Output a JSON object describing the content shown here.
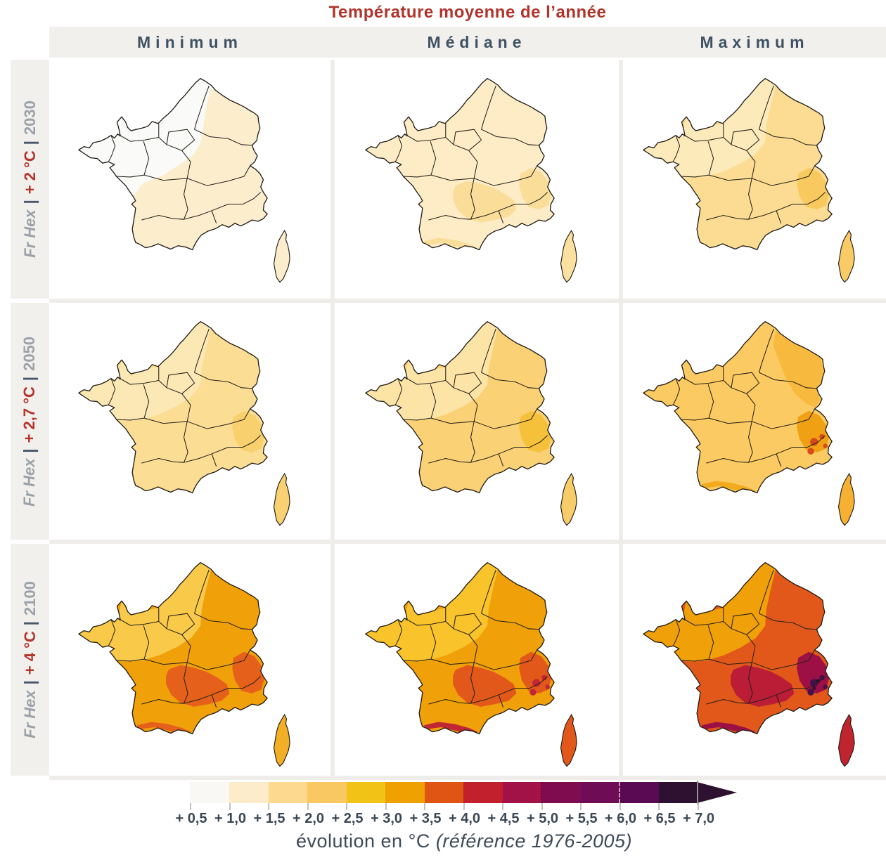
{
  "title": "Température moyenne de l’année",
  "columns": [
    {
      "label": "Minimum"
    },
    {
      "label": "Médiane"
    },
    {
      "label": "Maximum"
    }
  ],
  "rows": [
    {
      "dataset": "Fr Hex",
      "sep": "|",
      "scenario": "+ 2 °C",
      "year": "2030"
    },
    {
      "dataset": "Fr Hex",
      "sep": "|",
      "scenario": "+ 2,7 °C",
      "year": "2050"
    },
    {
      "dataset": "Fr Hex",
      "sep": "|",
      "scenario": "+ 4 °C",
      "year": "2100"
    }
  ],
  "cells": [
    {
      "row": "2030",
      "column": "Minimum",
      "colors": {
        "base": "#fafaf8",
        "corsica": "#fcedcd",
        "p-se": "#fcedcd"
      }
    },
    {
      "row": "2030",
      "column": "Médiane",
      "colors": {
        "base": "#fdecc6",
        "corsica": "#fbe0a0",
        "p-massif": "#fbdd9a",
        "p-alps": "#fbdd9a",
        "p-pyr": "#fbdd9a"
      }
    },
    {
      "row": "2030",
      "column": "Maximum",
      "colors": {
        "base": "#fbdc92",
        "corsica": "#f8cb67",
        "p-nw": "#fdeaba",
        "p-alps": "#f8c95e"
      }
    },
    {
      "row": "2050",
      "column": "Minimum",
      "colors": {
        "base": "#fbdd94",
        "corsica": "#f9d173",
        "p-nw": "#fce8b4",
        "p-alps": "#f9d06e"
      }
    },
    {
      "row": "2050",
      "column": "Médiane",
      "colors": {
        "base": "#fbd176",
        "corsica": "#f9cc6a",
        "p-nw": "#fce3a6",
        "p-alps": "#f6c13a"
      }
    },
    {
      "row": "2050",
      "column": "Maximum",
      "colors": {
        "base": "#fbca62",
        "corsica": "#f6b133",
        "p-east": "#f8ba3e",
        "p-alps": "#f0a113",
        "p-spots": "#d84a1a",
        "p-pyr": "#f3ab1e"
      }
    },
    {
      "row": "2100",
      "column": "Minimum",
      "colors": {
        "base": "#f0a008",
        "corsica": "#f2ae25",
        "p-nw": "#f9c94a",
        "p-massif": "#e5611b",
        "p-alps": "#e5611b",
        "p-pyr": "#e5611b"
      }
    },
    {
      "row": "2100",
      "column": "Médiane",
      "colors": {
        "base": "#f0a008",
        "corsica": "#e2581a",
        "p-nw": "#f9c32b",
        "p-massif": "#e2581a",
        "p-alps": "#e2581a",
        "p-spots": "#c12634",
        "p-pyr": "#c12634"
      }
    },
    {
      "row": "2100",
      "column": "Maximum",
      "colors": {
        "base": "#e2581a",
        "corsica": "#c0242f",
        "p-nw": "#f0a008",
        "p-massif": "#bb1c36",
        "p-alps": "#9c1045",
        "p-spots": "#45104a",
        "p-spot2": "#2c1030",
        "p-pyr": "#9c1045"
      }
    }
  ],
  "panels_estimated_anomaly_C": [
    {
      "row": "Fr Hex | + 2 °C | 2030",
      "column": "Minimum",
      "approx_range": "+0,5 à +1,5"
    },
    {
      "row": "Fr Hex | + 2 °C | 2030",
      "column": "Médiane",
      "approx_range": "+1,0 à +2,0"
    },
    {
      "row": "Fr Hex | + 2 °C | 2030",
      "column": "Maximum",
      "approx_range": "+1,0 à +2,5"
    },
    {
      "row": "Fr Hex | + 2,7 °C | 2050",
      "column": "Minimum",
      "approx_range": "+1,0 à +2,0"
    },
    {
      "row": "Fr Hex | + 2,7 °C | 2050",
      "column": "Médiane",
      "approx_range": "+1,5 à +2,5"
    },
    {
      "row": "Fr Hex | + 2,7 °C | 2050",
      "column": "Maximum",
      "approx_range": "+1,5 à +3,5"
    },
    {
      "row": "Fr Hex | + 4 °C | 2100",
      "column": "Minimum",
      "approx_range": "+2,0 à +4,0"
    },
    {
      "row": "Fr Hex | + 4 °C | 2100",
      "column": "Médiane",
      "approx_range": "+2,0 à +4,5"
    },
    {
      "row": "Fr Hex | + 4 °C | 2100",
      "column": "Maximum",
      "approx_range": "+2,5 à +7,0"
    }
  ],
  "legend": {
    "ticks": [
      "+ 0,5",
      "+ 1,0",
      "+ 1,5",
      "+ 2,0",
      "+ 2,5",
      "+ 3,0",
      "+ 3,5",
      "+ 4,0",
      "+ 4,5",
      "+ 5,0",
      "+ 5,5",
      "+ 6,0",
      "+ 6,5",
      "+ 7,0"
    ],
    "block_colors": [
      "#f9f8f4",
      "#fdeccb",
      "#fcd98e",
      "#fac863",
      "#f1c317",
      "#f0a102",
      "#e05414",
      "#c2202d",
      "#a31246",
      "#7f0c4e",
      "#6e0c55",
      "#5a0a52",
      "#2e1130"
    ],
    "arrow_color": "#2e1130",
    "caption": "évolution en °C ",
    "caption_ref": "(référence 1976-2005)"
  }
}
